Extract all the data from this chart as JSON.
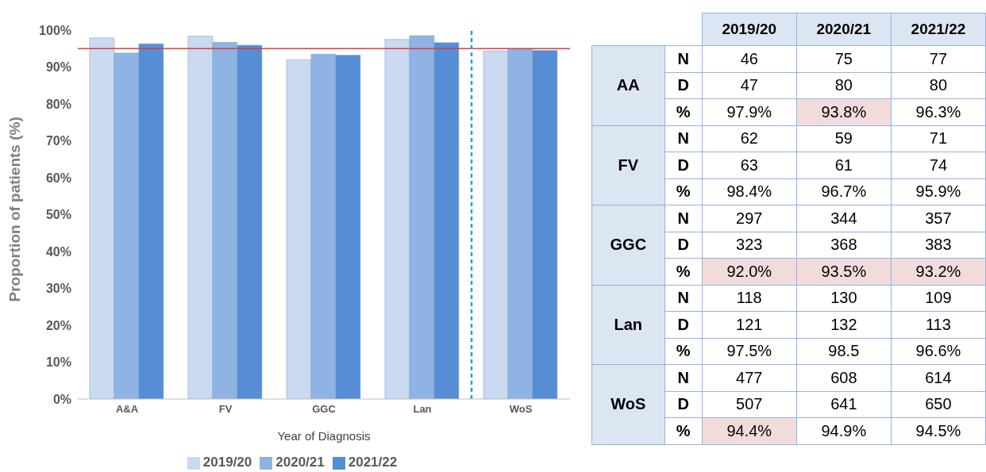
{
  "chart_data": [
    {
      "type": "bar",
      "xlabel": "Year of Diagnosis",
      "ylabel": "Proportion of patients (%)",
      "categories": [
        "A&A",
        "FV",
        "GGC",
        "Lan",
        "WoS"
      ],
      "series": [
        {
          "name": "2019/20",
          "color": "#c9d9f0",
          "values": [
            97.9,
            98.4,
            92.0,
            97.5,
            94.4
          ]
        },
        {
          "name": "2020/21",
          "color": "#8fb3e3",
          "values": [
            93.8,
            96.7,
            93.5,
            98.5,
            94.9
          ]
        },
        {
          "name": "2021/22",
          "color": "#558ed5",
          "values": [
            96.3,
            95.9,
            93.2,
            96.6,
            94.5
          ]
        }
      ],
      "ylim": [
        0,
        100
      ],
      "yticks": [
        {
          "value": 0,
          "label": "0%"
        },
        {
          "value": 10,
          "label": "10%"
        },
        {
          "value": 20,
          "label": "20%"
        },
        {
          "value": 30,
          "label": "30%"
        },
        {
          "value": 40,
          "label": "40%"
        },
        {
          "value": 50,
          "label": "50%"
        },
        {
          "value": 60,
          "label": "60%"
        },
        {
          "value": 70,
          "label": "70%"
        },
        {
          "value": 80,
          "label": "80%"
        },
        {
          "value": 90,
          "label": "90%"
        },
        {
          "value": 100,
          "label": "100%"
        }
      ],
      "ref_lines": [
        {
          "axis": "y",
          "value": 95,
          "color": "#e03c3c"
        },
        {
          "axis": "x",
          "value": "WoS",
          "color": "#1fa3d8",
          "line_style": "dashed"
        }
      ],
      "grid": false,
      "legend": "bottom"
    },
    {
      "type": "heatmap",
      "categories": [
        "2019/20",
        "2020/21",
        "2021/22"
      ],
      "y_categories": [
        "N",
        "D",
        "%",
        "N",
        "D",
        "%",
        "N",
        "D",
        "%",
        "N",
        "D",
        "%",
        "N",
        "D",
        "%"
      ],
      "y2_categories": [
        null,
        "AA",
        null,
        null,
        "FV",
        null,
        null,
        "GGC",
        null,
        null,
        "Lan",
        null,
        null,
        "WoS",
        null
      ],
      "cells": [
        [
          46,
          75,
          77
        ],
        [
          47,
          80,
          80
        ],
        [
          97.9,
          93.8,
          96.3
        ],
        [
          62,
          59,
          71
        ],
        [
          63,
          61,
          74
        ],
        [
          98.4,
          96.7,
          95.9
        ],
        [
          297,
          344,
          357
        ],
        [
          323,
          368,
          383
        ],
        [
          92.0,
          93.5,
          93.2
        ],
        [
          118,
          130,
          109
        ],
        [
          121,
          132,
          113
        ],
        [
          97.5,
          98.5,
          96.6
        ],
        [
          477,
          608,
          614
        ],
        [
          507,
          641,
          650
        ],
        [
          94.4,
          94.9,
          94.5
        ]
      ],
      "cell_labels": [
        [
          "46",
          "75",
          "77"
        ],
        [
          "47",
          "80",
          "80"
        ],
        [
          "97.9%",
          "93.8%",
          "96.3%"
        ],
        [
          "62",
          "59",
          "71"
        ],
        [
          "63",
          "61",
          "74"
        ],
        [
          "98.4%",
          "96.7%",
          "95.9%"
        ],
        [
          "297",
          "344",
          "357"
        ],
        [
          "323",
          "368",
          "383"
        ],
        [
          "92.0%",
          "93.5%",
          "93.2%"
        ],
        [
          "118",
          "130",
          "109"
        ],
        [
          "121",
          "132",
          "113"
        ],
        [
          "97.5%",
          "98.5",
          "96.6%"
        ],
        [
          "477",
          "608",
          "614"
        ],
        [
          "507",
          "641",
          "650"
        ],
        [
          "94.4%",
          "94.9%",
          "94.5%"
        ]
      ],
      "colors": [
        [
          null,
          null,
          null
        ],
        [
          null,
          null,
          null
        ],
        [
          null,
          "#f2dcdb",
          null
        ],
        [
          null,
          null,
          null
        ],
        [
          null,
          null,
          null
        ],
        [
          null,
          null,
          null
        ],
        [
          null,
          null,
          null
        ],
        [
          null,
          null,
          null
        ],
        [
          "#f2dcdb",
          "#f2dcdb",
          "#f2dcdb"
        ],
        [
          null,
          null,
          null
        ],
        [
          null,
          null,
          null
        ],
        [
          null,
          null,
          null
        ],
        [
          null,
          null,
          null
        ],
        [
          null,
          null,
          null
        ],
        [
          "#f2dcdb",
          null,
          null
        ]
      ]
    }
  ]
}
